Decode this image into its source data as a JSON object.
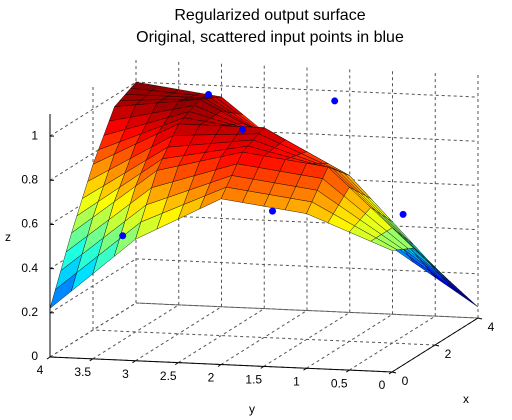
{
  "chart_data": {
    "type": "surface3d",
    "title": "Regularized output surface",
    "subtitle": "Original, scattered input points in blue",
    "xlabel": "x",
    "ylabel": "y",
    "zlabel": "z",
    "x": [
      0,
      1,
      2,
      3,
      4
    ],
    "y": [
      0,
      1,
      2,
      3,
      4
    ],
    "z": [
      [
        0.55,
        0.7,
        0.75,
        0.55,
        0.22
      ],
      [
        0.5,
        0.85,
        0.9,
        0.8,
        0.5
      ],
      [
        0.35,
        0.75,
        0.95,
        0.95,
        0.75
      ],
      [
        0.2,
        0.5,
        0.8,
        1.0,
        0.95
      ],
      [
        0.05,
        0.3,
        0.65,
        0.95,
        1.0
      ]
    ],
    "colormap": "jet",
    "points": {
      "color": "#0000ff",
      "x": [
        0.2,
        2.6,
        1.8,
        3.3,
        1.6,
        3.3
      ],
      "y": [
        3.2,
        2.8,
        2.2,
        1.5,
        1.8,
        0.7
      ],
      "z": [
        0.55,
        1.05,
        0.95,
        1.0,
        0.6,
        0.5
      ]
    },
    "xlim": [
      0,
      4
    ],
    "ylim": [
      0,
      4
    ],
    "zlim": [
      0,
      1.1
    ],
    "xticks": [
      0,
      2,
      4
    ],
    "yticks": [
      0,
      0.5,
      1,
      1.5,
      2,
      2.5,
      3,
      3.5,
      4
    ],
    "zticks": [
      0,
      0.2,
      0.4,
      0.6,
      0.8,
      1
    ],
    "grid": true
  }
}
